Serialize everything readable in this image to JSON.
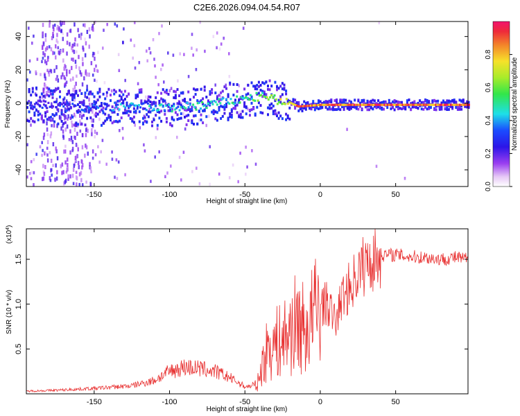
{
  "figure_title": "C2E6.2026.094.04.54.R07",
  "colors": {
    "axis": "#000000",
    "snr_line": "#e83030",
    "background": "#ffffff"
  },
  "chart_data": [
    {
      "type": "heatmap",
      "name": "spectrogram",
      "xlabel": "Height of straight line (km)",
      "ylabel": "Frequency (Hz)",
      "xlim": [
        -195,
        98
      ],
      "ylim": [
        -50,
        49
      ],
      "x_ticks": [
        -150,
        -100,
        -50,
        0,
        50
      ],
      "y_ticks": [
        -40,
        -20,
        0,
        20,
        40
      ],
      "colorbar": {
        "label": "Normalized spectral amplitude",
        "range": [
          0,
          1
        ],
        "ticks": [
          0.0,
          0.2,
          0.4,
          0.6,
          0.8
        ],
        "tick_labels": [
          "0.0",
          "0.2",
          "0.4",
          "0.6",
          "0.8"
        ],
        "colormap": "rainbow (white-purple-blue-cyan-green-yellow-red-magenta)"
      },
      "ridge": [
        {
          "x": -195,
          "f": 0,
          "amp": 0.2
        },
        {
          "x": -160,
          "f": -3,
          "amp": 0.25
        },
        {
          "x": -130,
          "f": -2,
          "amp": 0.35
        },
        {
          "x": -100,
          "f": -3,
          "amp": 0.4
        },
        {
          "x": -75,
          "f": -1,
          "amp": 0.45
        },
        {
          "x": -55,
          "f": 2,
          "amp": 0.45
        },
        {
          "x": -40,
          "f": 4,
          "amp": 0.55
        },
        {
          "x": -30,
          "f": 2,
          "amp": 0.65
        },
        {
          "x": -20,
          "f": 0,
          "amp": 0.75
        },
        {
          "x": -15,
          "f": -2,
          "amp": 0.9
        },
        {
          "x": 0,
          "f": -1,
          "amp": 0.85
        },
        {
          "x": 20,
          "f": -1,
          "amp": 0.88
        },
        {
          "x": 98,
          "f": -1,
          "amp": 0.88
        }
      ]
    },
    {
      "type": "line",
      "name": "snr",
      "xlabel": "Height of straight line (km)",
      "ylabel": "SNR (10 * v/v)",
      "y_multiplier": "(x10",
      "y_multiplier_exp": "4",
      "xlim": [
        -195,
        98
      ],
      "ylim": [
        0,
        18400
      ],
      "x_ticks": [
        -150,
        -100,
        -50,
        0,
        50
      ],
      "y_ticks": [
        5000,
        10000,
        15000
      ],
      "y_tick_labels": [
        "0.5",
        "1.0",
        "1.5"
      ],
      "series": [
        {
          "name": "SNR",
          "x": [
            -195,
            -175,
            -150,
            -125,
            -110,
            -100,
            -90,
            -80,
            -70,
            -60,
            -50,
            -42,
            -38,
            -34,
            -30,
            -25,
            -20,
            -15,
            -10,
            -5,
            0,
            5,
            10,
            15,
            20,
            25,
            30,
            40,
            50,
            60,
            70,
            80,
            90,
            98
          ],
          "y": [
            300,
            400,
            600,
            900,
            1500,
            2500,
            3000,
            2800,
            2500,
            1800,
            800,
            900,
            3500,
            5500,
            5500,
            6000,
            7000,
            8000,
            7000,
            8500,
            10000,
            10000,
            8000,
            11000,
            12000,
            13500,
            14500,
            15500,
            15500,
            15300,
            15200,
            15000,
            15200,
            15000
          ]
        }
      ]
    }
  ]
}
